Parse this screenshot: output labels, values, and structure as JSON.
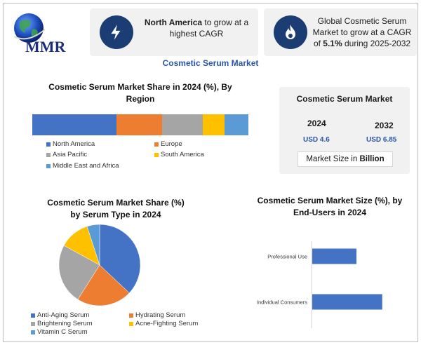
{
  "brand": {
    "name": "MMR"
  },
  "callouts": [
    {
      "bold": "North America",
      "text": " to grow at a highest CAGR",
      "icon": "lightning-bolt-icon"
    },
    {
      "text_a": "Global Cosmetic Serum Market to grow at a CAGR of ",
      "bold": "5.1%",
      "text_b": " during 2025-2032",
      "icon": "flame-icon"
    }
  ],
  "main_title": "Cosmetic Serum Market",
  "region_section": {
    "title_line1": "Cosmetic Serum Market Share in 2024 (%), By",
    "title_line2": "Region"
  },
  "serum_section": {
    "title_line1": "Cosmetic Serum Market Share (%)",
    "title_line2": "by Serum Type in 2024"
  },
  "enduser_section": {
    "title_line1": "Cosmetic Serum Market Size (%), by",
    "title_line2": "End-Users in 2024"
  },
  "market_card": {
    "title": "Cosmetic Serum Market",
    "year_a": "2024",
    "value_a": "USD 4.6",
    "year_b": "2032",
    "value_b": "USD 6.85",
    "footer_text": "Market Size in ",
    "footer_bold": "Billion"
  },
  "colors": {
    "blue": "#4472c4",
    "orange": "#ed7d31",
    "gray": "#a5a5a5",
    "yellow": "#ffc000",
    "lightblue": "#5b9bd5",
    "navy": "#1c3d73"
  },
  "chart_data": [
    {
      "type": "bar",
      "stacked": true,
      "orientation": "horizontal",
      "title": "Cosmetic Serum Market Share in 2024 (%), By Region",
      "series": [
        {
          "name": "North America",
          "value": 39,
          "color": "#4472c4"
        },
        {
          "name": "Europe",
          "value": 21,
          "color": "#ed7d31"
        },
        {
          "name": "Asia Pacific",
          "value": 19,
          "color": "#a5a5a5"
        },
        {
          "name": "South America",
          "value": 10,
          "color": "#ffc000"
        },
        {
          "name": "Middle East and Africa",
          "value": 11,
          "color": "#5b9bd5"
        }
      ]
    },
    {
      "type": "pie",
      "title": "Cosmetic Serum Market Share (%) by Serum Type in 2024",
      "slices": [
        {
          "name": "Anti-Aging Serum",
          "value": 37,
          "color": "#4472c4"
        },
        {
          "name": "Hydrating Serum",
          "value": 22,
          "color": "#ed7d31"
        },
        {
          "name": "Brightening Serum",
          "value": 24,
          "color": "#a5a5a5"
        },
        {
          "name": "Acne-Fighting Serum",
          "value": 12,
          "color": "#ffc000"
        },
        {
          "name": "Vitamin C Serum",
          "value": 5,
          "color": "#5b9bd5"
        }
      ]
    },
    {
      "type": "bar",
      "orientation": "horizontal",
      "title": "Cosmetic Serum Market Size (%), by End-Users in 2024",
      "categories": [
        "Professional Use",
        "Individual Consumers"
      ],
      "values": [
        36,
        57
      ],
      "xlim": [
        0,
        80
      ],
      "color": "#4472c4"
    }
  ]
}
